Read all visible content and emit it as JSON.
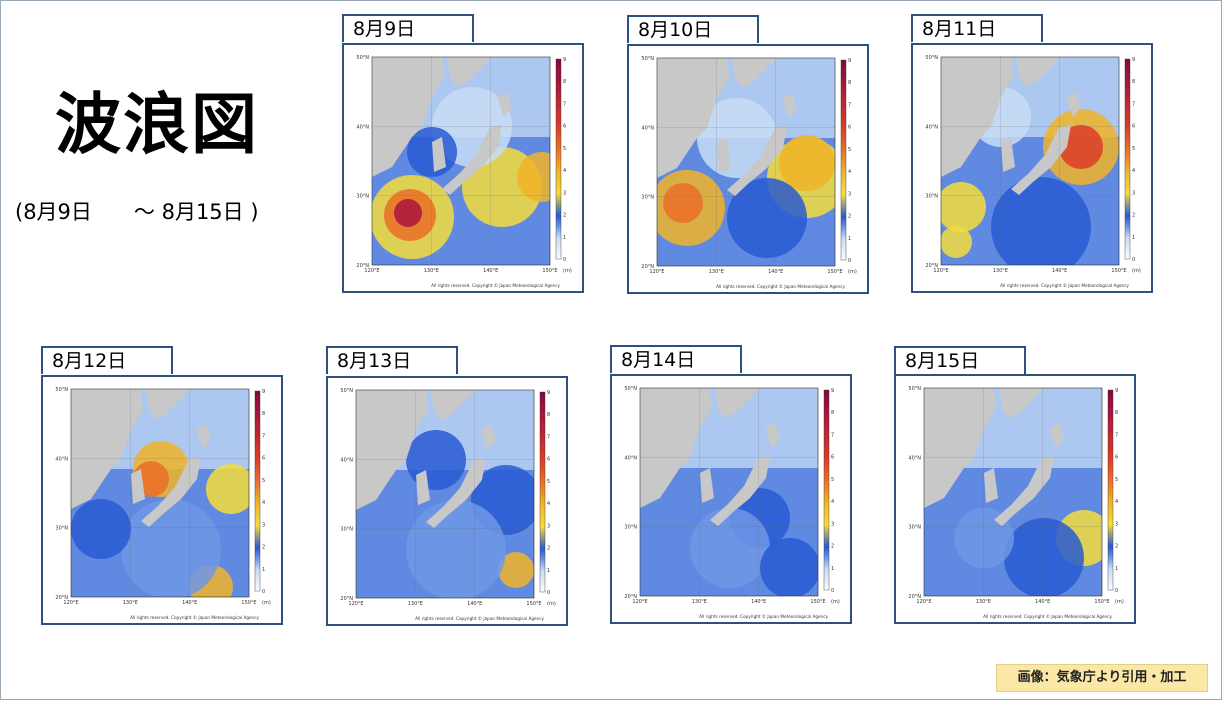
{
  "page": {
    "title": "波浪図",
    "range": "(8月9日　　～ 8月15日 )",
    "credit": "画像：気象庁より引用・加工"
  },
  "map_labels": {
    "lat_ticks": [
      "50°N",
      "40°N",
      "30°N",
      "20°N"
    ],
    "lon_ticks": [
      "120°E",
      "130°E",
      "140°E",
      "150°E"
    ],
    "scale_ticks": [
      "9",
      "8",
      "7",
      "6",
      "5",
      "4",
      "3",
      "2",
      "1",
      "0"
    ],
    "scale_unit": "(m)",
    "copyright": "All rights reserved. Copyright © Japan Meteorological Agency"
  },
  "colors": {
    "land": "#c8c8c8",
    "panel_border": "#2f4f7f",
    "credit_bg": "#fbe8a6"
  },
  "panels": [
    {
      "date": "8月9日"
    },
    {
      "date": "8月10日"
    },
    {
      "date": "8月11日"
    },
    {
      "date": "8月12日"
    },
    {
      "date": "8月13日"
    },
    {
      "date": "8月14日"
    },
    {
      "date": "8月15日"
    }
  ]
}
